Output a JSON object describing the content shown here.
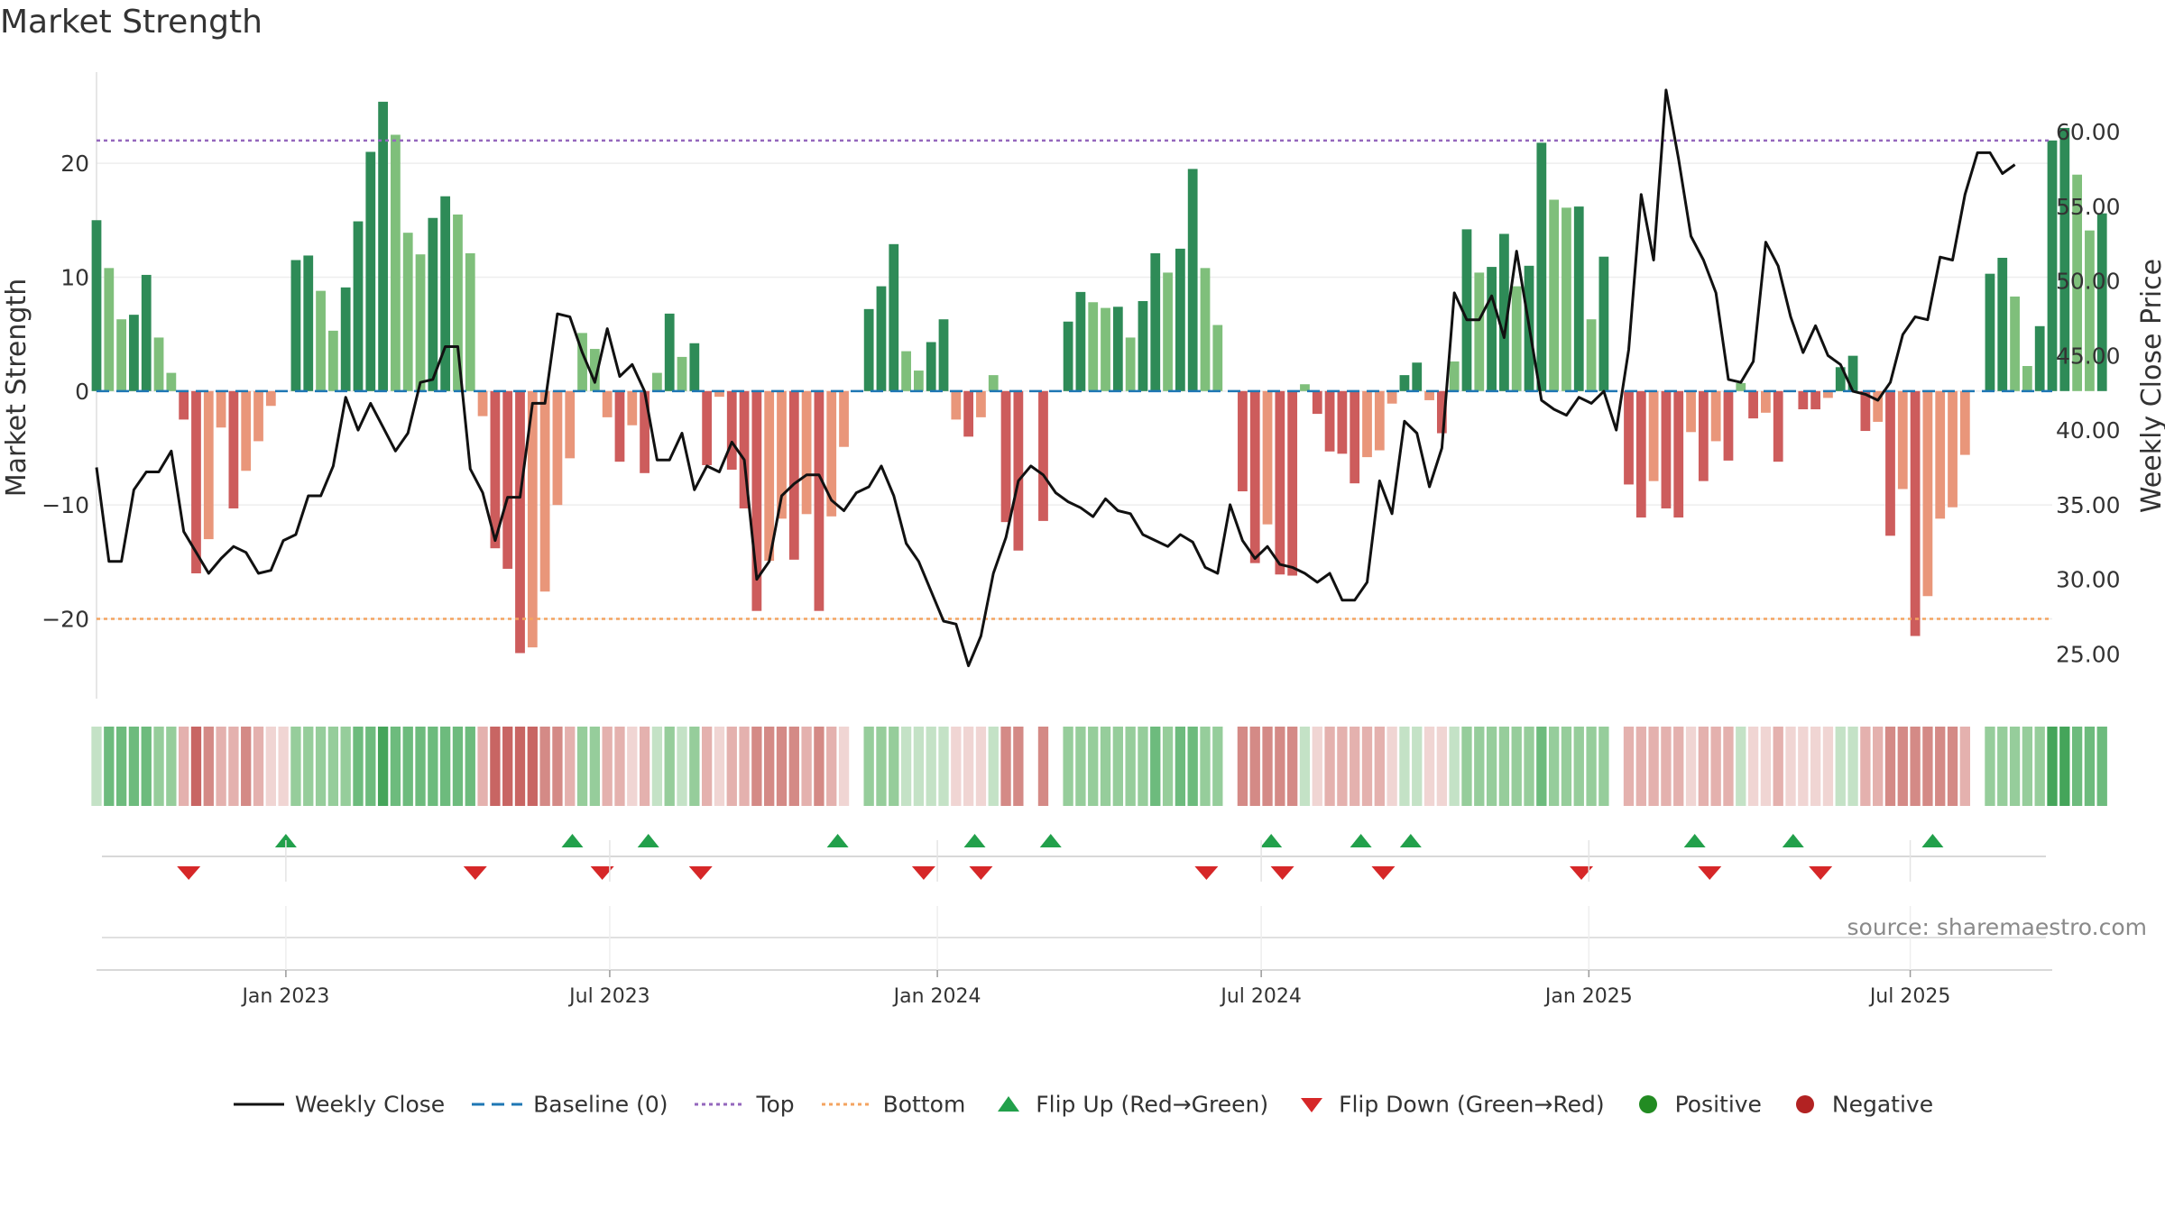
{
  "title": "Market Strength",
  "source": "source: sharemaestro.com",
  "colors": {
    "strong_green": "#2e8b57",
    "light_green": "#7fbf7b",
    "strong_red": "#cd5c5c",
    "light_red": "#e9967a",
    "line": "#111111",
    "baseline": "#1f77b4",
    "top": "#9467bd",
    "bottom": "#f4a460",
    "flip_up": "#22a04b",
    "flip_down": "#d62728",
    "positive": "#228b22",
    "negative": "#b22222"
  },
  "chart_data": {
    "type": "bar",
    "title": "Market Strength",
    "ylabel": "Market Strength",
    "y2label": "Weekly Close Price",
    "ylim": [
      -27,
      28
    ],
    "y2lim": [
      22,
      64
    ],
    "yticks": [
      "−20",
      "−10",
      "0",
      "10",
      "20"
    ],
    "yticks_values": [
      -20,
      -10,
      0,
      10,
      20
    ],
    "y2ticks": [
      "25.00",
      "30.00",
      "35.00",
      "40.00",
      "45.00",
      "50.00",
      "55.00",
      "60.00"
    ],
    "y2ticks_values": [
      25,
      30,
      35,
      40,
      45,
      50,
      55,
      60
    ],
    "x_range": [
      0,
      157
    ],
    "xticks": [
      "Jan 2023",
      "Jul 2023",
      "Jan 2024",
      "Jul 2024",
      "Jan 2025",
      "Jul 2025"
    ],
    "xticks_index": [
      15.2,
      41.2,
      67.5,
      93.5,
      119.8,
      145.6
    ],
    "top_line": 22,
    "bottom_line": -20,
    "baseline": 0,
    "strength": [
      15,
      10.8,
      6.3,
      6.7,
      10.2,
      4.7,
      1.6,
      -2.5,
      -16,
      -13,
      -3.2,
      -10.3,
      -7,
      -4.4,
      -1.3,
      0,
      11.5,
      11.9,
      8.8,
      5.3,
      9.1,
      14.9,
      21,
      25.4,
      22.5,
      13.9,
      12,
      15.2,
      17.1,
      15.5,
      12.1,
      -2.2,
      -13.8,
      -15.6,
      -23,
      -22.5,
      -17.6,
      -10,
      -5.9,
      5.1,
      3.7,
      -2.3,
      -6.2,
      -3,
      -7.2,
      1.6,
      6.8,
      3,
      4.2,
      -6.5,
      -0.5,
      -6.9,
      -10.3,
      -19.3,
      -14.9,
      -11.2,
      -14.8,
      -10.8,
      -19.3,
      -11,
      -4.9,
      0,
      7.2,
      9.2,
      12.9,
      3.5,
      1.8,
      4.3,
      6.3,
      -2.5,
      -4,
      -2.3,
      1.4,
      -11.5,
      -14,
      0,
      -11.4,
      0,
      6.1,
      8.7,
      7.8,
      7.3,
      7.4,
      4.7,
      7.9,
      12.1,
      10.4,
      12.5,
      19.5,
      10.8,
      5.8,
      0,
      -8.8,
      -15.1,
      -11.7,
      -16.1,
      -16.2,
      0.6,
      -2,
      -5.3,
      -5.5,
      -8.1,
      -5.8,
      -5.2,
      -1.1,
      1.4,
      2.5,
      -0.8,
      -3.7,
      2.6,
      14.2,
      10.4,
      10.9,
      13.8,
      9.2,
      11,
      21.8,
      16.8,
      16.1,
      16.2,
      6.3,
      11.8,
      0,
      -8.2,
      -11.1,
      -7.9,
      -10.3,
      -11.1,
      -3.6,
      -7.9,
      -4.4,
      -6.1,
      0.7,
      -2.4,
      -1.9,
      -6.2,
      0,
      -1.6,
      -1.6,
      -0.6,
      2.1,
      3.1,
      -3.5,
      -2.7,
      -12.7,
      -8.6,
      -21.5,
      -18,
      -11.2,
      -10.2,
      -5.6,
      0,
      10.3,
      11.7,
      8.3,
      2.2,
      5.7,
      22,
      23.1,
      19,
      14.1,
      15.6
    ],
    "close": [
      37.5,
      31.2,
      31.2,
      36,
      37.2,
      37.2,
      38.6,
      33.2,
      31.8,
      30.4,
      31.4,
      32.2,
      31.8,
      30.4,
      30.6,
      32.6,
      33,
      35.6,
      35.6,
      37.6,
      42.2,
      40,
      41.8,
      40.2,
      38.6,
      39.8,
      43.2,
      43.4,
      45.6,
      45.6,
      37.4,
      35.8,
      32.6,
      35.5,
      35.5,
      41.8,
      41.8,
      47.8,
      47.6,
      45.2,
      43.2,
      46.8,
      43.6,
      44.4,
      42.6,
      38,
      38,
      39.8,
      36,
      37.6,
      37.2,
      39.2,
      38,
      30,
      31.2,
      35.6,
      36.4,
      37,
      37,
      35.3,
      34.6,
      35.8,
      36.2,
      37.6,
      35.6,
      32.4,
      31.2,
      29.2,
      27.2,
      27,
      24.2,
      26.2,
      30.4,
      32.8,
      36.6,
      37.6,
      37,
      35.8,
      35.2,
      34.8,
      34.2,
      35.4,
      34.6,
      34.4,
      33,
      32.6,
      32.2,
      33,
      32.5,
      30.8,
      30.4,
      35,
      32.6,
      31.4,
      32.2,
      31,
      30.8,
      30.4,
      29.8,
      30.4,
      28.6,
      28.6,
      29.8,
      36.6,
      34.4,
      40.6,
      39.8,
      36.2,
      38.8,
      49.2,
      47.4,
      47.4,
      49,
      46.2,
      52,
      47,
      42,
      41.4,
      41,
      42.2,
      41.8,
      42.6,
      40,
      45.4,
      55.8,
      51.4,
      62.8,
      58.2,
      53,
      51.4,
      49.2,
      43.4,
      43.2,
      44.6,
      52.6,
      51,
      47.6,
      45.2,
      47,
      45,
      44.4,
      42.6,
      42.4,
      42,
      43.2,
      46.4,
      47.6,
      47.4,
      51.6,
      51.4,
      55.8,
      58.6,
      58.6,
      57.2,
      57.8
    ],
    "strip_level": [
      1,
      3,
      3,
      3,
      3,
      2,
      2,
      -2,
      -4,
      -3,
      -2,
      -2,
      -3,
      -2,
      -1,
      -1,
      2,
      2,
      2,
      2,
      2,
      3,
      3,
      4,
      3,
      3,
      3,
      3,
      3,
      3,
      3,
      -2,
      -4,
      -4,
      -4,
      -4,
      -3,
      -3,
      -2,
      2,
      2,
      -2,
      -2,
      -1,
      -2,
      1,
      2,
      1,
      2,
      -2,
      -1,
      -2,
      -2,
      -3,
      -3,
      -3,
      -3,
      -2,
      -3,
      -2,
      -1,
      0,
      2,
      2,
      2,
      1,
      1,
      1,
      1,
      -1,
      -1,
      -1,
      1,
      -3,
      -3,
      0,
      -3,
      0,
      2,
      2,
      2,
      2,
      2,
      2,
      2,
      3,
      2,
      3,
      3,
      2,
      2,
      0,
      -3,
      -3,
      -3,
      -3,
      -3,
      1,
      -1,
      -2,
      -2,
      -2,
      -2,
      -2,
      -1,
      1,
      1,
      -1,
      -1,
      1,
      2,
      2,
      2,
      2,
      2,
      2,
      3,
      2,
      2,
      2,
      2,
      2,
      0,
      -2,
      -2,
      -2,
      -2,
      -2,
      -1,
      -2,
      -2,
      -2,
      1,
      -1,
      -1,
      -2,
      -1,
      -1,
      -1,
      -1,
      1,
      1,
      -2,
      -2,
      -3,
      -3,
      -3,
      -3,
      -3,
      -3,
      -2,
      0,
      2,
      2,
      2,
      2,
      2,
      4,
      4,
      3,
      3,
      3
    ],
    "flip_up": [
      15.2,
      38.2,
      44.3,
      59.5,
      70.5,
      76.6,
      94.3,
      101.5,
      105.5,
      128.3,
      136.2,
      147.4
    ],
    "flip_down": [
      7.4,
      30.4,
      40.6,
      48.5,
      66.4,
      71,
      89.1,
      95.2,
      103.3,
      119.2,
      129.5,
      138.4
    ],
    "legend": [
      "Weekly Close",
      "Baseline (0)",
      "Top",
      "Bottom",
      "Flip Up (Red→Green)",
      "Flip Down (Green→Red)",
      "Positive",
      "Negative"
    ]
  }
}
